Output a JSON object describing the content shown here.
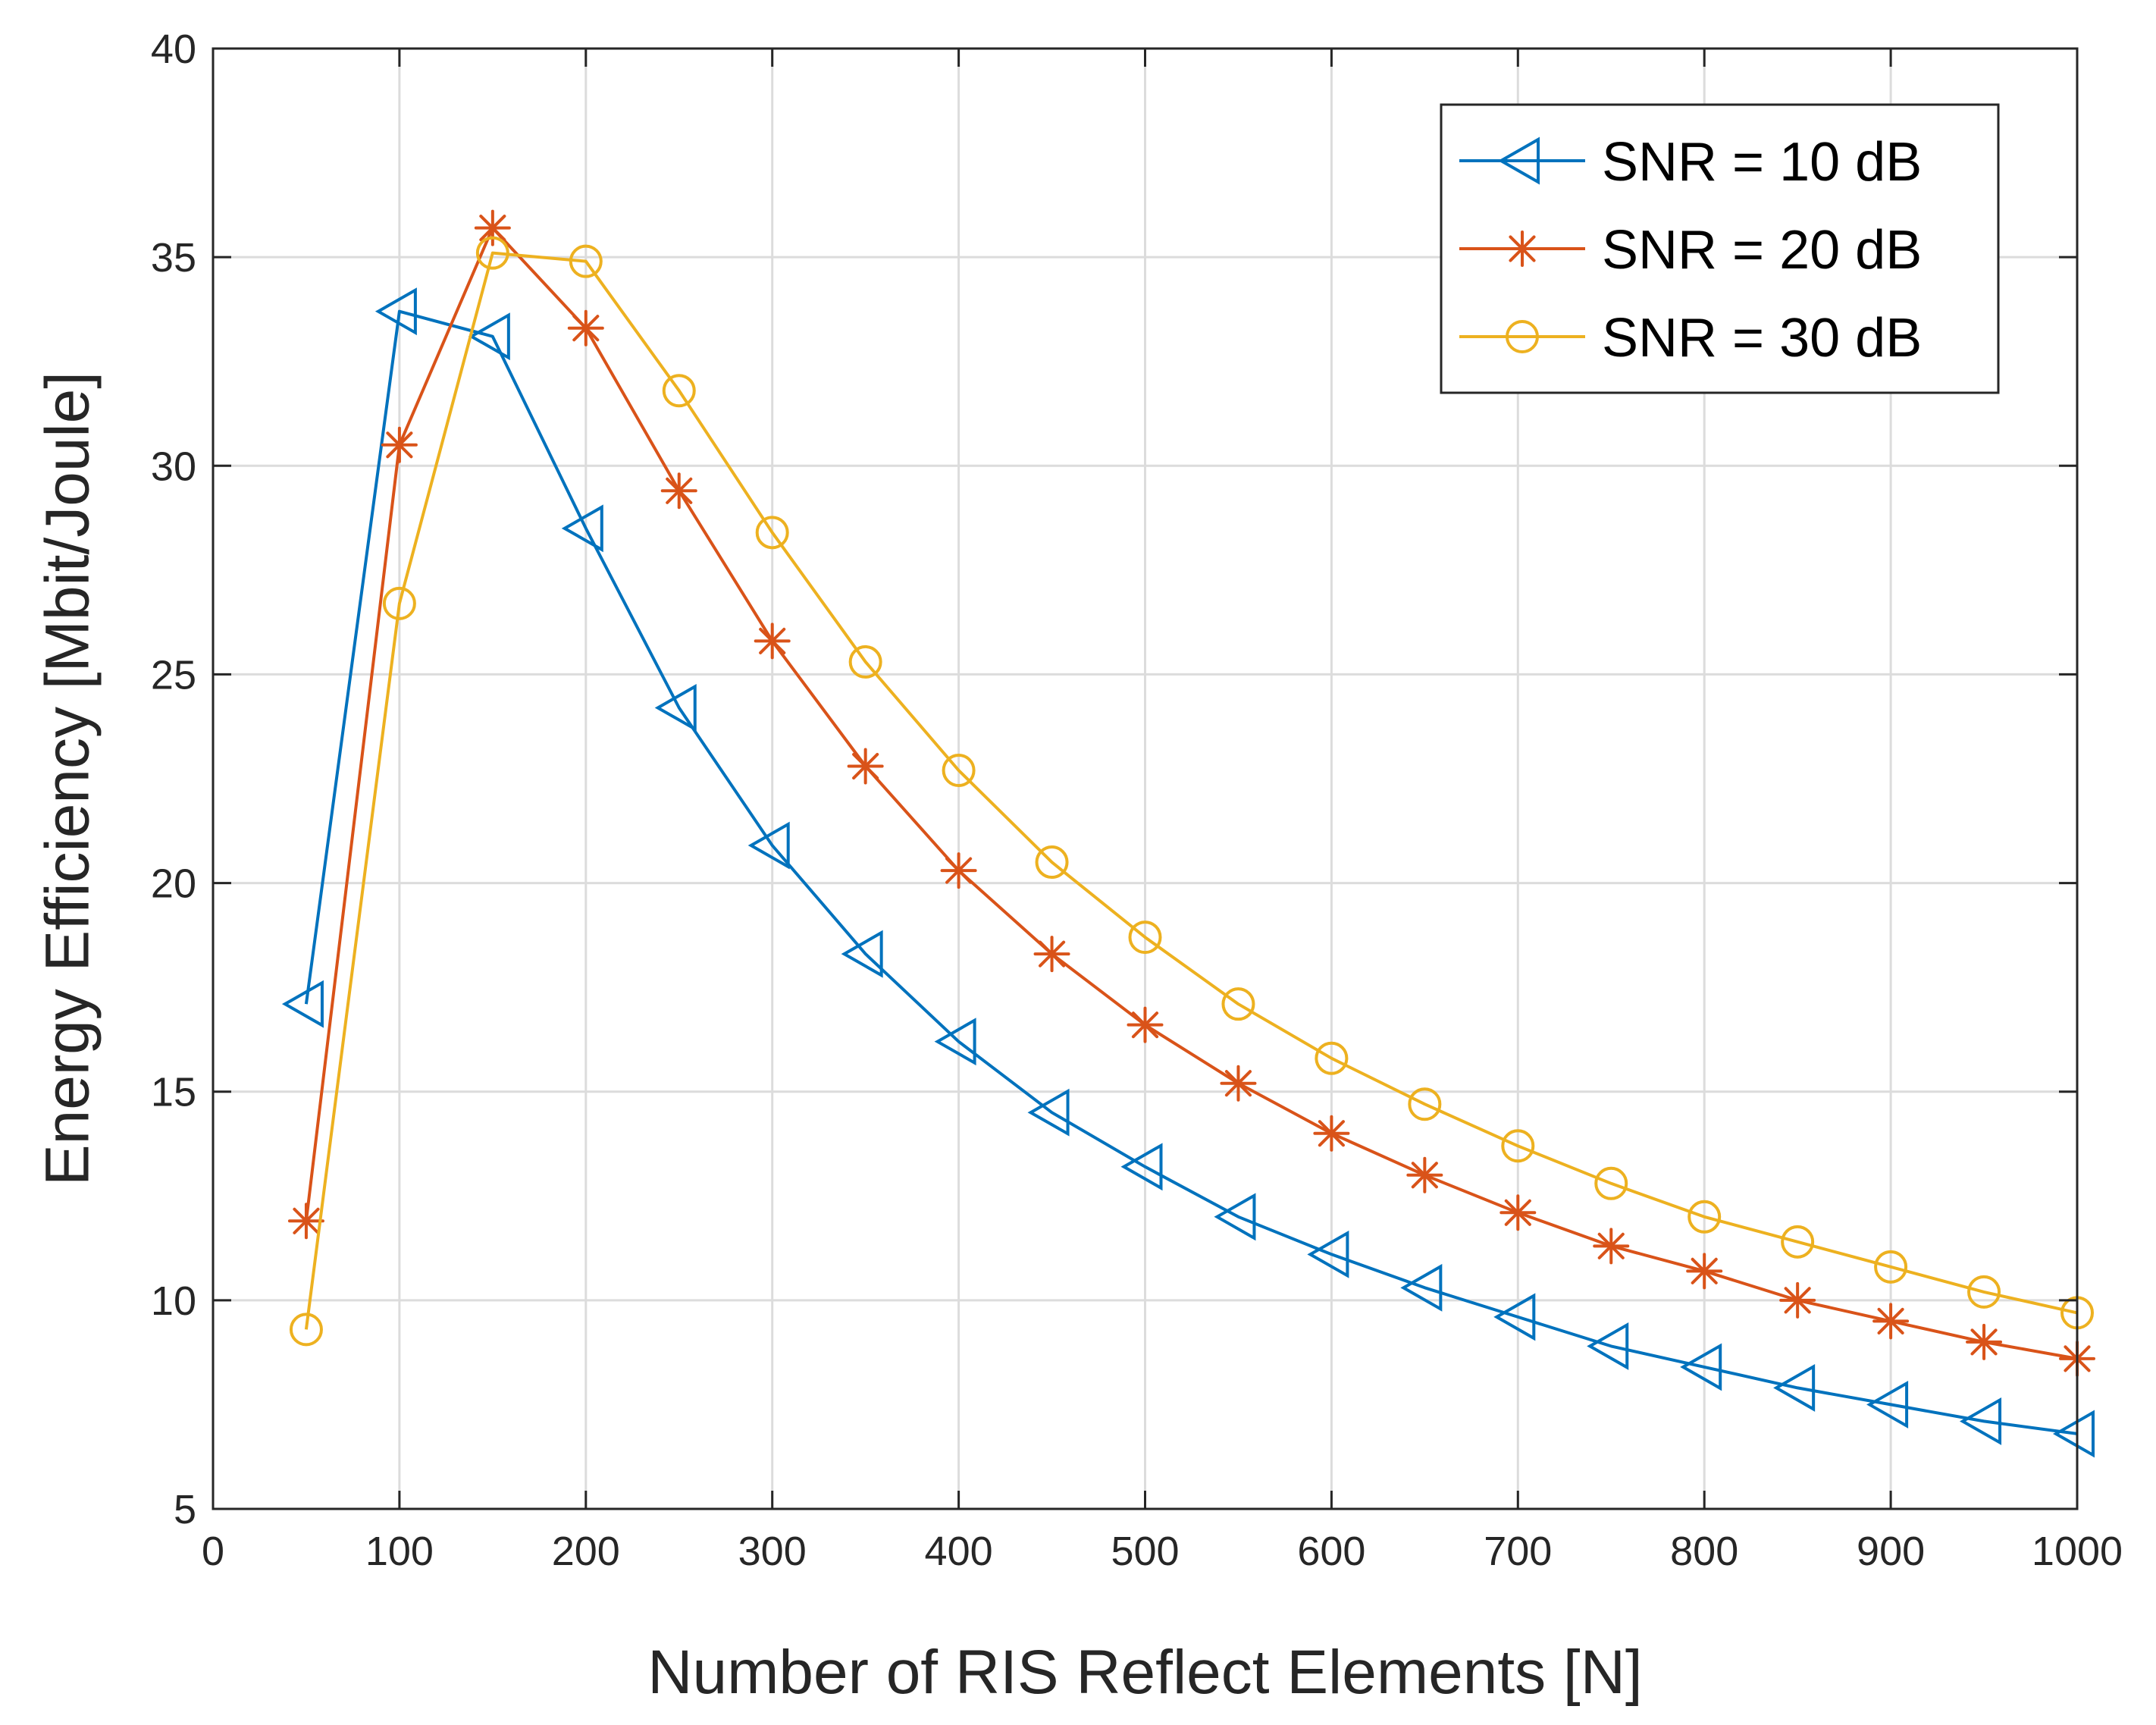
{
  "chart_data": {
    "type": "line",
    "title": "",
    "xlabel": "Number of RIS Reflect Elements [N]",
    "ylabel": "Energy Efficiency [Mbit/Joule]",
    "xlim": [
      0,
      1000
    ],
    "ylim": [
      5,
      40
    ],
    "xticks": [
      0,
      100,
      200,
      300,
      400,
      500,
      600,
      700,
      800,
      900,
      1000
    ],
    "yticks": [
      5,
      10,
      15,
      20,
      25,
      30,
      35,
      40
    ],
    "grid": true,
    "legend_position": "top-right",
    "x": [
      50,
      100,
      150,
      200,
      250,
      300,
      350,
      400,
      450,
      500,
      550,
      600,
      650,
      700,
      750,
      800,
      850,
      900,
      950,
      1000
    ],
    "series": [
      {
        "name": "SNR = 10 dB",
        "color": "#0072BD",
        "marker": "triangle-left",
        "values": [
          17.1,
          33.7,
          33.1,
          28.5,
          24.2,
          20.9,
          18.3,
          16.2,
          14.5,
          13.2,
          12.0,
          11.1,
          10.3,
          9.6,
          8.9,
          8.4,
          7.9,
          7.5,
          7.1,
          6.8
        ]
      },
      {
        "name": "SNR = 20 dB",
        "color": "#D95319",
        "marker": "asterisk",
        "values": [
          11.9,
          30.5,
          35.7,
          33.3,
          29.4,
          25.8,
          22.8,
          20.3,
          18.3,
          16.6,
          15.2,
          14.0,
          13.0,
          12.1,
          11.3,
          10.7,
          10.0,
          9.5,
          9.0,
          8.6
        ]
      },
      {
        "name": "SNR = 30 dB",
        "color": "#EDB120",
        "marker": "circle",
        "values": [
          9.3,
          26.7,
          35.1,
          34.9,
          31.8,
          28.4,
          25.3,
          22.7,
          20.5,
          18.7,
          17.1,
          15.8,
          14.7,
          13.7,
          12.8,
          12.0,
          11.4,
          10.8,
          10.2,
          9.7
        ]
      }
    ]
  }
}
